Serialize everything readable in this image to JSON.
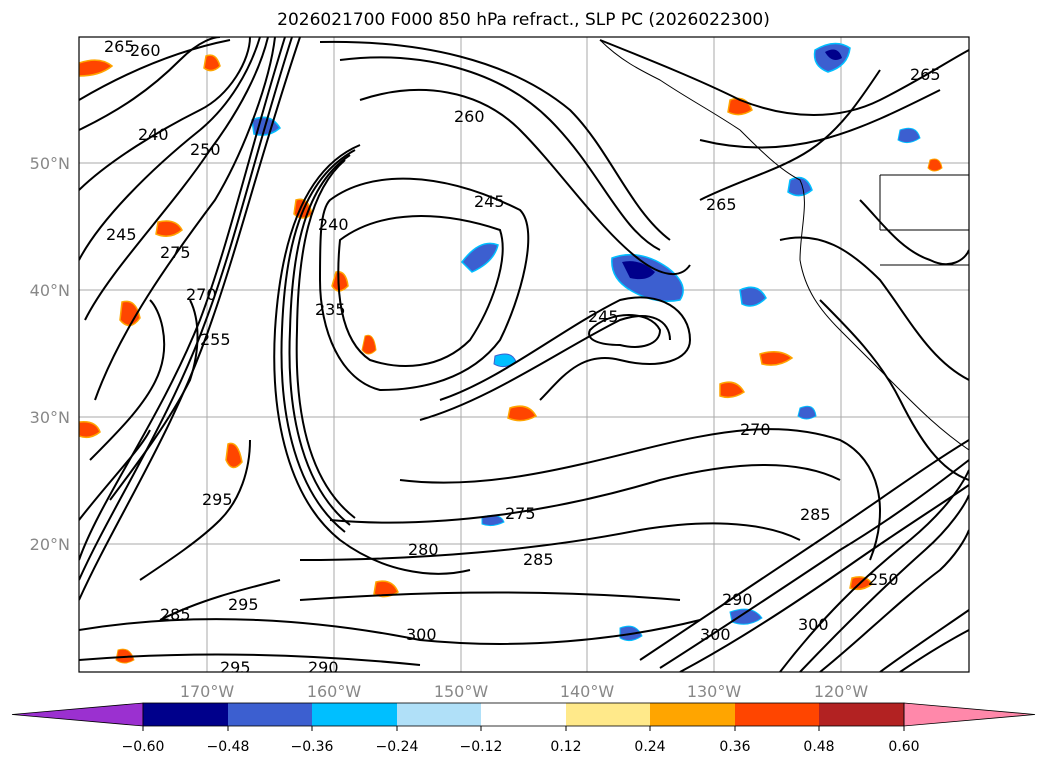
{
  "title": "2026021700 F000 850 hPa refract., SLP PC (2026022300)",
  "latitude_labels": [
    "50°N",
    "40°N",
    "30°N",
    "20°N"
  ],
  "longitude_labels": [
    "170°W",
    "160°W",
    "150°W",
    "140°W",
    "130°W",
    "120°W"
  ],
  "colorbar": {
    "ticks": [
      "−0.60",
      "−0.48",
      "−0.36",
      "−0.24",
      "−0.12",
      "0.12",
      "0.24",
      "0.36",
      "0.48",
      "0.60"
    ],
    "colors": [
      "#9b30d0",
      "#00008b",
      "#3c5fd0",
      "#00bfff",
      "#b0e0f8",
      "#ffffff",
      "#ffe98a",
      "#ffa500",
      "#ff4500",
      "#b22222",
      "#ff88aa"
    ]
  },
  "contour_labels": [
    "265",
    "260",
    "240",
    "250",
    "245",
    "275",
    "270",
    "255",
    "235",
    "260",
    "245",
    "245",
    "265",
    "265",
    "240",
    "270",
    "295",
    "275",
    "285",
    "280",
    "295",
    "285",
    "300",
    "290",
    "295",
    "300",
    "290",
    "300",
    "285",
    "250"
  ]
}
